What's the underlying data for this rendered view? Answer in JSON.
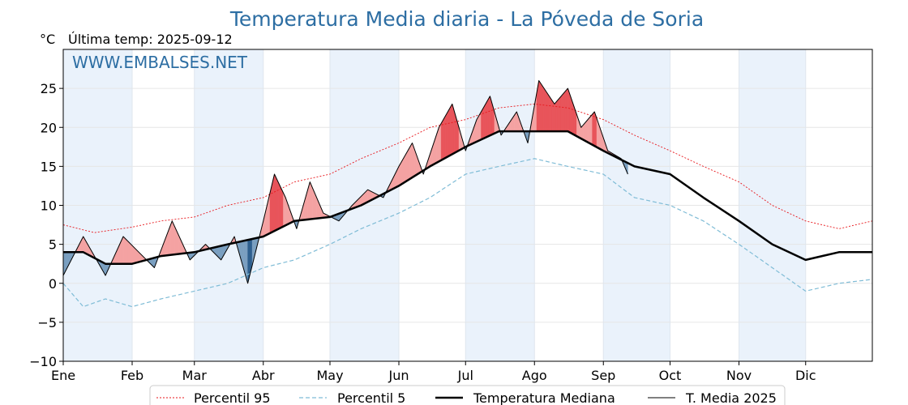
{
  "chart_data": {
    "type": "line",
    "title": "Temperatura Media diaria - La Póveda de Soria",
    "unit": "°C",
    "subtitle": "Última temp: 2025-09-12",
    "watermark": "WWW.EMBALSES.NET",
    "ylim": [
      -10,
      30
    ],
    "yticks": [
      -10,
      -5,
      0,
      5,
      10,
      15,
      20,
      25
    ],
    "ytick_labels": [
      "−10",
      "−5",
      "0",
      "5",
      "10",
      "15",
      "20",
      "25"
    ],
    "months": [
      "Ene",
      "Feb",
      "Mar",
      "Abr",
      "May",
      "Jun",
      "Jul",
      "Ago",
      "Sep",
      "Oct",
      "Nov",
      "Dic"
    ],
    "month_start_days": [
      1,
      32,
      60,
      91,
      121,
      152,
      182,
      213,
      244,
      274,
      305,
      335
    ],
    "legend_position": "bottom",
    "colors": {
      "p95": "#e8161b",
      "p5": "#7fbcd6",
      "median": "#000000",
      "current": "#000000",
      "above": "#f4a2a2",
      "above_strong": "#e8545a",
      "below": "#7a9fc0",
      "below_strong": "#2e5f8e",
      "band": "#eaf2fb"
    },
    "series": [
      {
        "name": "Percentil 95",
        "style": "dotted-red",
        "x": [
          1,
          15,
          32,
          45,
          60,
          75,
          91,
          105,
          121,
          135,
          152,
          166,
          182,
          197,
          213,
          228,
          244,
          258,
          274,
          289,
          305,
          320,
          335,
          350,
          365
        ],
        "y": [
          7.5,
          6.5,
          7.2,
          8,
          8.5,
          10,
          11,
          13,
          14,
          16,
          18,
          20,
          21,
          22.5,
          23,
          22.5,
          21,
          19,
          17,
          15,
          13,
          10,
          8,
          7,
          8
        ]
      },
      {
        "name": "Percentil 5",
        "style": "dashed-lightblue",
        "x": [
          1,
          10,
          20,
          32,
          45,
          60,
          75,
          91,
          105,
          121,
          135,
          152,
          166,
          182,
          197,
          213,
          228,
          244,
          258,
          274,
          289,
          305,
          320,
          335,
          350,
          365
        ],
        "y": [
          0,
          -3,
          -2,
          -3,
          -2,
          -1,
          0,
          2,
          3,
          5,
          7,
          9,
          11,
          14,
          15,
          16,
          15,
          14,
          11,
          10,
          8,
          5,
          2,
          -1,
          0,
          0.5
        ]
      },
      {
        "name": "Temperatura Mediana",
        "style": "thick-black",
        "x": [
          1,
          10,
          20,
          32,
          45,
          60,
          75,
          91,
          105,
          121,
          135,
          152,
          166,
          182,
          197,
          213,
          228,
          244,
          258,
          274,
          289,
          305,
          320,
          335,
          350,
          365
        ],
        "y": [
          4,
          4,
          2.5,
          2.5,
          3.5,
          4,
          5,
          6,
          8,
          8.5,
          10,
          12.5,
          15,
          17.5,
          19.5,
          19.5,
          19.5,
          17,
          15,
          14,
          11,
          8,
          5,
          3,
          4,
          4
        ]
      },
      {
        "name": "T. Media 2025",
        "style": "thin-black",
        "x": [
          1,
          10,
          20,
          28,
          35,
          42,
          50,
          58,
          65,
          72,
          78,
          84,
          91,
          96,
          101,
          106,
          112,
          118,
          125,
          131,
          138,
          145,
          152,
          158,
          163,
          170,
          176,
          182,
          187,
          193,
          198,
          205,
          210,
          215,
          222,
          228,
          234,
          240,
          246,
          252,
          255
        ],
        "y": [
          1,
          6,
          1,
          6,
          4,
          2,
          8,
          3,
          5,
          3,
          6,
          0,
          8,
          14,
          11,
          7,
          13,
          9,
          8,
          10,
          12,
          11,
          15,
          18,
          14,
          20,
          23,
          17,
          21,
          24,
          19,
          22,
          18,
          26,
          23,
          25,
          20,
          22,
          17,
          16,
          14
        ]
      }
    ]
  },
  "legend": {
    "p95": "Percentil 95",
    "p5": "Percentil 5",
    "median": "Temperatura Mediana",
    "current": "T. Media 2025"
  }
}
